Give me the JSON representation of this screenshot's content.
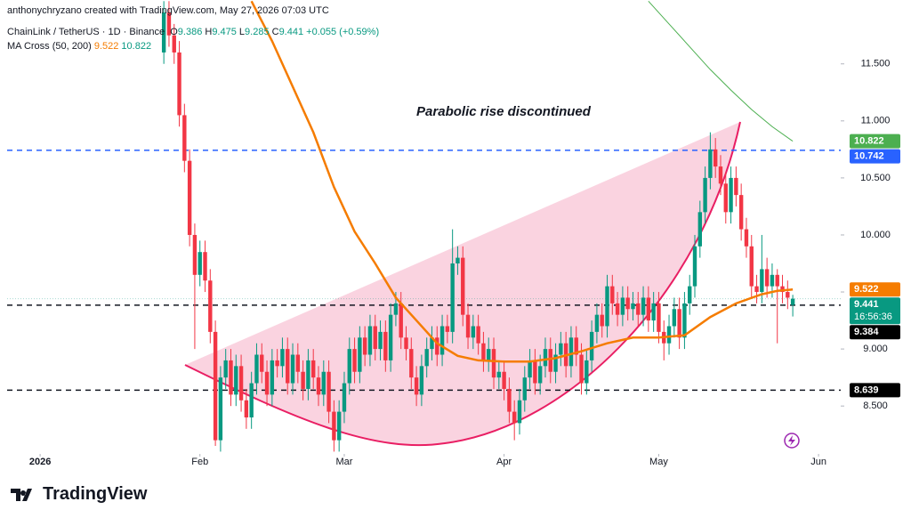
{
  "header": {
    "credit": "anthonychryzano created with TradingView.com, May 27, 2026 07:03 UTC",
    "symbol": "ChainLink / TetherUS · 1D · Binance",
    "change": "+0.055 (+0.59%)",
    "indicator": "MA Cross (50, 200)"
  },
  "footer": {
    "logo": "TradingView"
  },
  "chart_data": {
    "type": "candlestick",
    "annotation": "Parabolic rise discontinued",
    "countdown": "16:56:36",
    "up_color": "#089981",
    "down_color": "#f23645",
    "xlim": [
      -6.4,
      155.3
    ],
    "ylim": [
      8.08,
      12.06
    ],
    "xticks": [
      {
        "value": 0,
        "label": "2026"
      },
      {
        "value": 31,
        "label": "Feb"
      },
      {
        "value": 59,
        "label": "Mar"
      },
      {
        "value": 90,
        "label": "Apr"
      },
      {
        "value": 120,
        "label": "May"
      },
      {
        "value": 151,
        "label": "Jun"
      }
    ],
    "yticks": [
      {
        "value": 8.5,
        "label": "8.500"
      },
      {
        "value": 9,
        "label": "9.000"
      },
      {
        "value": 9.5,
        "label": "9.500"
      },
      {
        "value": 10,
        "label": "10.000"
      },
      {
        "value": 10.5,
        "label": "10.500"
      },
      {
        "value": 11,
        "label": "11.000"
      },
      {
        "value": 11.5,
        "label": "11.500"
      }
    ],
    "x": [
      24,
      25,
      26,
      27,
      28,
      29,
      30,
      31,
      32,
      33,
      34,
      35,
      36,
      37,
      38,
      39,
      40,
      41,
      42,
      43,
      44,
      45,
      46,
      47,
      48,
      49,
      50,
      51,
      52,
      53,
      54,
      55,
      56,
      57,
      58,
      59,
      60,
      61,
      62,
      63,
      64,
      65,
      66,
      67,
      68,
      69,
      70,
      71,
      72,
      73,
      74,
      75,
      76,
      77,
      78,
      79,
      80,
      81,
      82,
      83,
      84,
      85,
      86,
      87,
      88,
      89,
      90,
      91,
      92,
      93,
      94,
      95,
      96,
      97,
      98,
      99,
      100,
      101,
      102,
      103,
      104,
      105,
      106,
      107,
      108,
      109,
      110,
      111,
      112,
      113,
      114,
      115,
      116,
      117,
      118,
      119,
      120,
      121,
      122,
      123,
      124,
      125,
      126,
      127,
      128,
      129,
      130,
      131,
      132,
      133,
      134,
      135,
      136,
      137,
      138,
      139,
      140,
      141,
      142,
      143,
      144,
      145,
      146
    ],
    "open": [
      11.6,
      11.95,
      11.75,
      11.6,
      11.05,
      10.65,
      10.0,
      9.65,
      9.85,
      9.6,
      9.15,
      8.2,
      8.75,
      8.9,
      8.6,
      8.85,
      8.55,
      8.4,
      8.7,
      8.95,
      8.8,
      8.6,
      8.9,
      8.85,
      9.0,
      8.7,
      8.95,
      8.8,
      8.65,
      8.9,
      8.75,
      8.6,
      8.8,
      8.45,
      8.2,
      8.45,
      8.7,
      9.0,
      8.8,
      9.1,
      8.95,
      9.2,
      9.0,
      9.15,
      8.9,
      9.3,
      9.4,
      9.1,
      9.0,
      8.75,
      8.6,
      8.85,
      9.0,
      9.1,
      8.95,
      9.2,
      9.15,
      9.75,
      9.8,
      9.3,
      9.1,
      9.2,
      9.05,
      8.9,
      9.0,
      8.75,
      8.8,
      8.65,
      8.45,
      8.35,
      8.55,
      8.75,
      8.9,
      8.7,
      8.85,
      9.0,
      8.8,
      8.95,
      9.05,
      8.85,
      9.1,
      8.95,
      8.7,
      8.9,
      9.15,
      9.3,
      9.2,
      9.55,
      9.4,
      9.3,
      9.45,
      9.35,
      9.4,
      9.3,
      9.45,
      9.25,
      9.4,
      9.15,
      9.05,
      9.2,
      9.35,
      9.1,
      9.4,
      9.55,
      9.9,
      10.2,
      10.5,
      10.75,
      10.6,
      10.45,
      10.2,
      10.5,
      10.35,
      10.05,
      9.9,
      9.55,
      9.5,
      9.7,
      9.55,
      9.65,
      9.55,
      9.5,
      9.386
    ],
    "high": [
      12.05,
      12.05,
      11.85,
      11.7,
      11.15,
      10.75,
      10.1,
      9.95,
      9.95,
      9.7,
      9.25,
      8.85,
      9.0,
      9.0,
      8.95,
      8.95,
      8.65,
      8.8,
      9.05,
      9.05,
      8.9,
      9.0,
      9.0,
      9.1,
      9.1,
      9.05,
      9.05,
      8.9,
      9.0,
      9.0,
      8.85,
      8.9,
      8.9,
      8.55,
      8.55,
      8.8,
      9.1,
      9.1,
      9.2,
      9.2,
      9.3,
      9.3,
      9.25,
      9.25,
      9.4,
      9.5,
      9.5,
      9.2,
      9.1,
      8.85,
      8.95,
      9.1,
      9.2,
      9.2,
      9.3,
      9.3,
      10.05,
      9.9,
      9.9,
      9.4,
      9.3,
      9.3,
      9.15,
      9.1,
      9.1,
      8.9,
      8.9,
      8.75,
      8.55,
      8.65,
      8.85,
      9.0,
      9.0,
      8.95,
      9.1,
      9.1,
      9.05,
      9.15,
      9.15,
      9.2,
      9.2,
      9.05,
      9.0,
      9.25,
      9.4,
      9.4,
      9.65,
      9.65,
      9.5,
      9.55,
      9.55,
      9.5,
      9.5,
      9.55,
      9.55,
      9.5,
      9.5,
      9.25,
      9.3,
      9.45,
      9.45,
      9.5,
      9.65,
      10.0,
      10.3,
      10.6,
      10.9,
      10.85,
      10.7,
      10.55,
      10.6,
      10.6,
      10.45,
      10.15,
      10.0,
      9.65,
      10.0,
      9.8,
      9.75,
      9.7,
      9.65,
      9.6,
      9.475
    ],
    "low": [
      11.5,
      11.65,
      11.5,
      10.95,
      10.55,
      9.9,
      9.0,
      9.55,
      9.5,
      9.05,
      8.15,
      8.1,
      8.65,
      8.5,
      8.5,
      8.45,
      8.3,
      8.3,
      8.6,
      8.7,
      8.5,
      8.5,
      8.75,
      8.75,
      8.6,
      8.6,
      8.7,
      8.55,
      8.55,
      8.65,
      8.5,
      8.5,
      8.35,
      8.1,
      8.1,
      8.35,
      8.6,
      8.7,
      8.7,
      8.85,
      8.85,
      8.9,
      8.9,
      8.8,
      8.8,
      9.2,
      9.0,
      8.9,
      8.65,
      8.5,
      8.5,
      8.75,
      8.9,
      8.85,
      8.85,
      9.05,
      9.05,
      9.65,
      9.2,
      9.0,
      9.0,
      8.95,
      8.8,
      8.8,
      8.65,
      8.65,
      8.55,
      8.35,
      8.2,
      8.25,
      8.45,
      8.65,
      8.6,
      8.6,
      8.75,
      8.7,
      8.7,
      8.85,
      8.75,
      8.75,
      8.85,
      8.6,
      8.6,
      8.8,
      9.05,
      9.1,
      9.1,
      9.3,
      9.2,
      9.2,
      9.25,
      9.25,
      9.2,
      9.2,
      9.15,
      9.15,
      9.05,
      8.9,
      8.95,
      9.1,
      9.0,
      9.0,
      9.3,
      9.45,
      9.8,
      10.1,
      10.4,
      10.5,
      10.35,
      10.1,
      10.1,
      10.25,
      9.95,
      9.8,
      9.45,
      9.4,
      9.4,
      9.45,
      9.45,
      9.05,
      9.4,
      9.35,
      9.285
    ],
    "close": [
      11.95,
      11.75,
      11.6,
      11.05,
      10.65,
      10.0,
      9.65,
      9.85,
      9.6,
      9.15,
      8.2,
      8.75,
      8.9,
      8.6,
      8.85,
      8.55,
      8.4,
      8.7,
      8.95,
      8.8,
      8.6,
      8.9,
      8.85,
      9.0,
      8.7,
      8.95,
      8.8,
      8.65,
      8.9,
      8.75,
      8.6,
      8.8,
      8.45,
      8.2,
      8.45,
      8.7,
      9.0,
      8.8,
      9.1,
      8.95,
      9.2,
      9.0,
      9.15,
      8.9,
      9.3,
      9.4,
      9.1,
      9.0,
      8.75,
      8.6,
      8.85,
      9.0,
      9.1,
      8.95,
      9.2,
      9.15,
      9.75,
      9.8,
      9.3,
      9.1,
      9.2,
      9.05,
      8.9,
      9.0,
      8.75,
      8.8,
      8.65,
      8.45,
      8.35,
      8.55,
      8.75,
      8.9,
      8.7,
      8.85,
      9.0,
      8.8,
      8.95,
      9.05,
      8.85,
      9.1,
      8.95,
      8.7,
      8.9,
      9.15,
      9.3,
      9.2,
      9.55,
      9.4,
      9.3,
      9.45,
      9.35,
      9.4,
      9.3,
      9.45,
      9.25,
      9.4,
      9.15,
      9.05,
      9.2,
      9.35,
      9.1,
      9.4,
      9.55,
      9.9,
      10.2,
      10.5,
      10.75,
      10.6,
      10.45,
      10.2,
      10.5,
      10.35,
      10.05,
      9.9,
      9.55,
      9.5,
      9.7,
      9.55,
      9.65,
      9.55,
      9.5,
      9.45,
      9.441
    ],
    "series": [
      {
        "color": "#f57c00",
        "x": [
          41,
          45,
          49,
          53,
          57,
          61,
          65,
          69,
          73,
          77,
          81,
          85,
          90,
          95,
          100,
          105,
          110,
          115,
          120,
          125,
          130,
          135,
          140,
          143,
          146
        ],
        "values": [
          12.05,
          11.7,
          11.3,
          10.9,
          10.42,
          10.03,
          9.75,
          9.45,
          9.25,
          9.05,
          8.94,
          8.9,
          8.89,
          8.89,
          8.92,
          8.98,
          9.05,
          9.1,
          9.1,
          9.12,
          9.28,
          9.4,
          9.48,
          9.51,
          9.522
        ]
      },
      {
        "color": "#4caf50",
        "x": [
          118,
          122,
          126,
          130,
          134,
          138,
          142,
          146
        ],
        "values": [
          12.05,
          11.85,
          11.65,
          11.45,
          11.27,
          11.1,
          10.95,
          10.822
        ]
      }
    ],
    "levels": [
      {
        "value": 10.742,
        "color": "#2962ff"
      },
      {
        "value": 9.384,
        "color": "#131722"
      },
      {
        "value": 8.639,
        "color": "#131722"
      }
    ]
  }
}
